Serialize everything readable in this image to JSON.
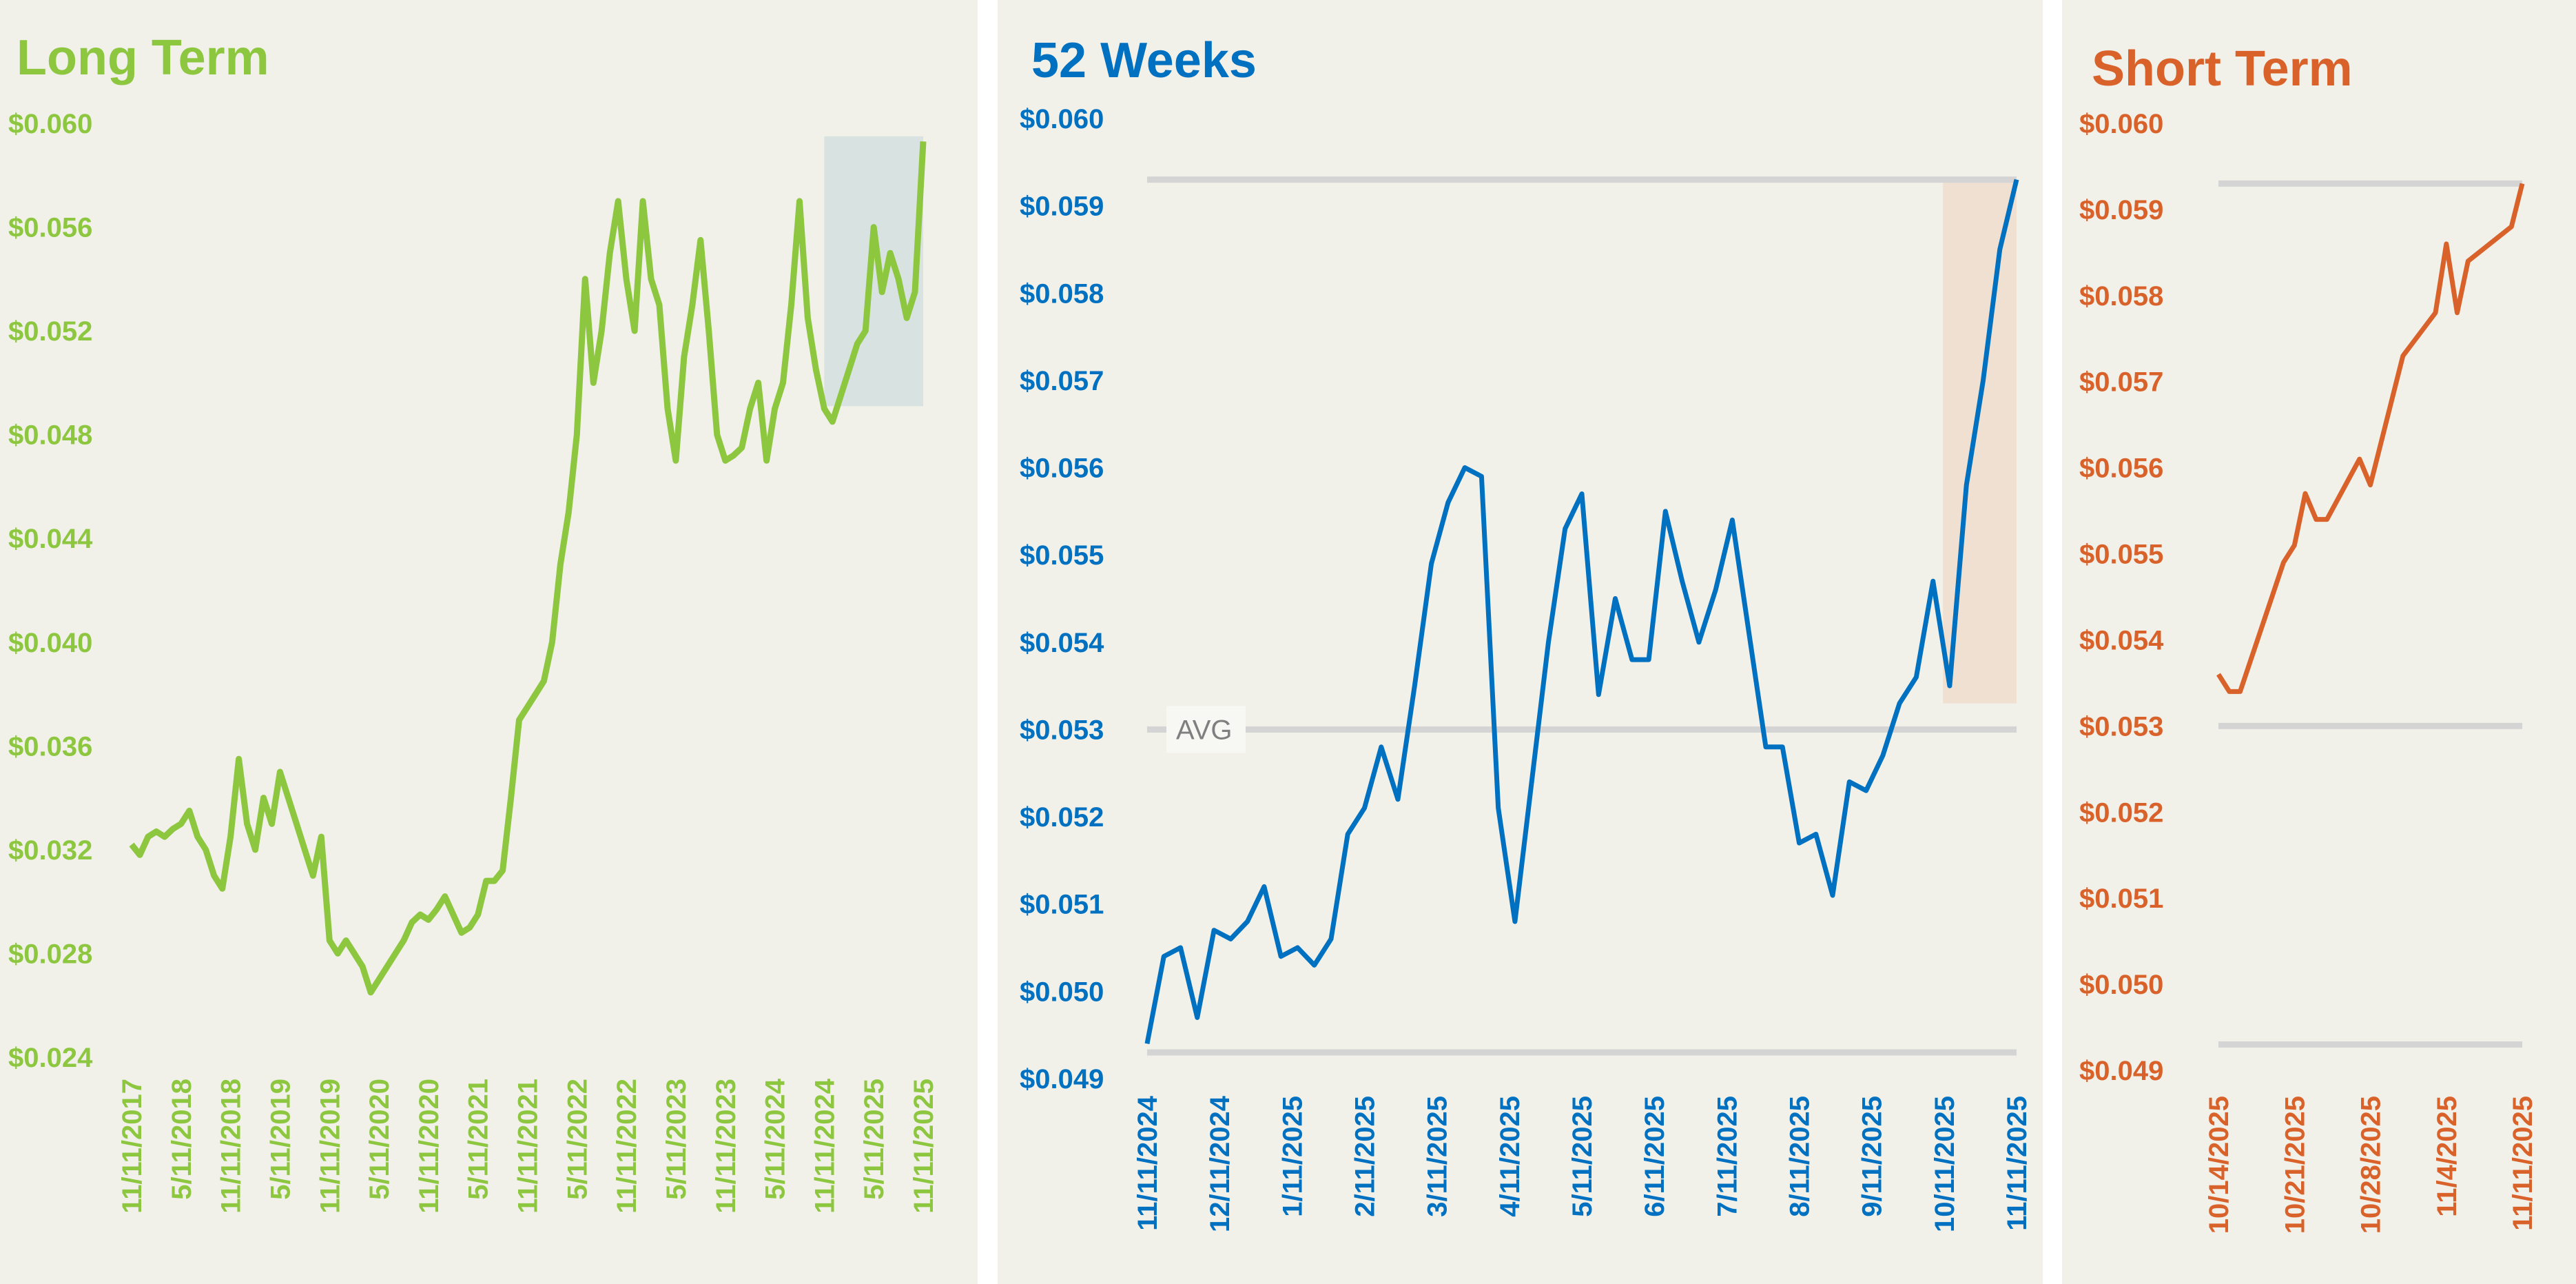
{
  "colors": {
    "long": "#8dc63f",
    "weeks": "#0070c0",
    "short": "#d9622b",
    "panel_bg": "#f1f0e9",
    "ref_line": "#d4d4d4",
    "long_shade": "#d8e3e1",
    "weeks_shade": "#efe0d2"
  },
  "chart_data": [
    {
      "type": "line",
      "title": "Long Term",
      "x_unit": "months since 11/2017",
      "ylim": [
        0.024,
        0.06
      ],
      "yticks": [
        0.024,
        0.028,
        0.032,
        0.036,
        0.04,
        0.044,
        0.048,
        0.052,
        0.056,
        0.06
      ],
      "ytick_labels": [
        "$0.024",
        "$0.028",
        "$0.032",
        "$0.036",
        "$0.040",
        "$0.044",
        "$0.048",
        "$0.052",
        "$0.056",
        "$0.060"
      ],
      "xtick_labels": [
        "11/11/2017",
        "5/11/2018",
        "11/11/2018",
        "5/11/2019",
        "11/11/2019",
        "5/11/2020",
        "11/11/2020",
        "5/11/2021",
        "11/11/2021",
        "5/11/2022",
        "11/11/2022",
        "5/11/2023",
        "11/11/2023",
        "5/11/2024",
        "11/11/2024",
        "5/11/2025",
        "11/11/2025"
      ],
      "highlight": {
        "x_from": 84,
        "x_to": 96,
        "y_from": 0.0491,
        "y_to": 0.0595
      },
      "values": [
        0.0322,
        0.0318,
        0.0325,
        0.0327,
        0.0325,
        0.0328,
        0.033,
        0.0335,
        0.0325,
        0.032,
        0.031,
        0.0305,
        0.0325,
        0.0355,
        0.033,
        0.032,
        0.034,
        0.033,
        0.035,
        0.034,
        0.033,
        0.032,
        0.031,
        0.0325,
        0.0285,
        0.028,
        0.0285,
        0.028,
        0.0275,
        0.0265,
        0.027,
        0.0275,
        0.028,
        0.0285,
        0.0292,
        0.0295,
        0.0293,
        0.0297,
        0.0302,
        0.0295,
        0.0288,
        0.029,
        0.0295,
        0.0308,
        0.0308,
        0.0312,
        0.034,
        0.037,
        0.0375,
        0.038,
        0.0385,
        0.04,
        0.043,
        0.045,
        0.048,
        0.054,
        0.05,
        0.052,
        0.055,
        0.057,
        0.054,
        0.052,
        0.057,
        0.054,
        0.053,
        0.049,
        0.047,
        0.051,
        0.053,
        0.0555,
        0.052,
        0.048,
        0.047,
        0.0472,
        0.0475,
        0.049,
        0.05,
        0.047,
        0.049,
        0.05,
        0.053,
        0.057,
        0.0525,
        0.0505,
        0.049,
        0.0485,
        0.0495,
        0.0505,
        0.0515,
        0.052,
        0.056,
        0.0535,
        0.055,
        0.054,
        0.0525,
        0.0535,
        0.0593
      ]
    },
    {
      "type": "line",
      "title": "52 Weeks",
      "x_unit": "weeks since 11/11/2024",
      "ylim": [
        0.049,
        0.06
      ],
      "yticks": [
        0.049,
        0.05,
        0.051,
        0.052,
        0.053,
        0.054,
        0.055,
        0.056,
        0.057,
        0.058,
        0.059,
        0.06
      ],
      "ytick_labels": [
        "$0.049",
        "$0.050",
        "$0.051",
        "$0.052",
        "$0.053",
        "$0.054",
        "$0.055",
        "$0.056",
        "$0.057",
        "$0.058",
        "$0.059",
        "$0.060"
      ],
      "xtick_labels": [
        "11/11/2024",
        "12/11/2024",
        "1/11/2025",
        "2/11/2025",
        "3/11/2025",
        "4/11/2025",
        "5/11/2025",
        "6/11/2025",
        "7/11/2025",
        "8/11/2025",
        "9/11/2025",
        "10/11/2025",
        "11/11/2025"
      ],
      "reference_lines": {
        "max": 0.0593,
        "avg": 0.053,
        "min": 0.0493
      },
      "avg_label": "AVG",
      "highlight": {
        "x_from": 47.6,
        "x_to": 52,
        "y_from": 0.0533,
        "y_to": 0.0593
      },
      "values": [
        0.0494,
        0.0504,
        0.0505,
        0.0497,
        0.0507,
        0.0506,
        0.0508,
        0.0512,
        0.0504,
        0.0505,
        0.0503,
        0.0506,
        0.0518,
        0.0521,
        0.0528,
        0.0522,
        0.0535,
        0.0549,
        0.0556,
        0.056,
        0.0559,
        0.0521,
        0.0508,
        0.0524,
        0.054,
        0.0553,
        0.0557,
        0.0534,
        0.0545,
        0.0538,
        0.0538,
        0.0555,
        0.0547,
        0.054,
        0.0546,
        0.0554,
        0.0541,
        0.0528,
        0.0528,
        0.0517,
        0.0518,
        0.0511,
        0.0524,
        0.0523,
        0.0527,
        0.0533,
        0.0536,
        0.0547,
        0.0535,
        0.0558,
        0.057,
        0.0585,
        0.0593
      ]
    },
    {
      "type": "line",
      "title": "Short Term",
      "x_unit": "days since 10/14/2025",
      "ylim": [
        0.049,
        0.06
      ],
      "yticks": [
        0.049,
        0.05,
        0.051,
        0.052,
        0.053,
        0.054,
        0.055,
        0.056,
        0.057,
        0.058,
        0.059,
        0.06
      ],
      "ytick_labels": [
        "$0.049",
        "$0.050",
        "$0.051",
        "$0.052",
        "$0.053",
        "$0.054",
        "$0.055",
        "$0.056",
        "$0.057",
        "$0.058",
        "$0.059",
        "$0.060"
      ],
      "xtick_labels": [
        "10/14/2025",
        "10/21/2025",
        "10/28/2025",
        "11/4/2025",
        "11/11/2025"
      ],
      "reference_lines": {
        "max": 0.0593,
        "avg": 0.053,
        "min": 0.0493
      },
      "points": [
        [
          0,
          0.0536
        ],
        [
          1,
          0.0534
        ],
        [
          2,
          0.0534
        ],
        [
          6,
          0.0549
        ],
        [
          7,
          0.0551
        ],
        [
          8,
          0.0557
        ],
        [
          9,
          0.0554
        ],
        [
          10,
          0.0554
        ],
        [
          13,
          0.0561
        ],
        [
          14,
          0.0558
        ],
        [
          17,
          0.0573
        ],
        [
          20,
          0.0578
        ],
        [
          21,
          0.0586
        ],
        [
          22,
          0.0578
        ],
        [
          23,
          0.0584
        ],
        [
          27,
          0.0588
        ],
        [
          28,
          0.0593
        ]
      ]
    }
  ]
}
